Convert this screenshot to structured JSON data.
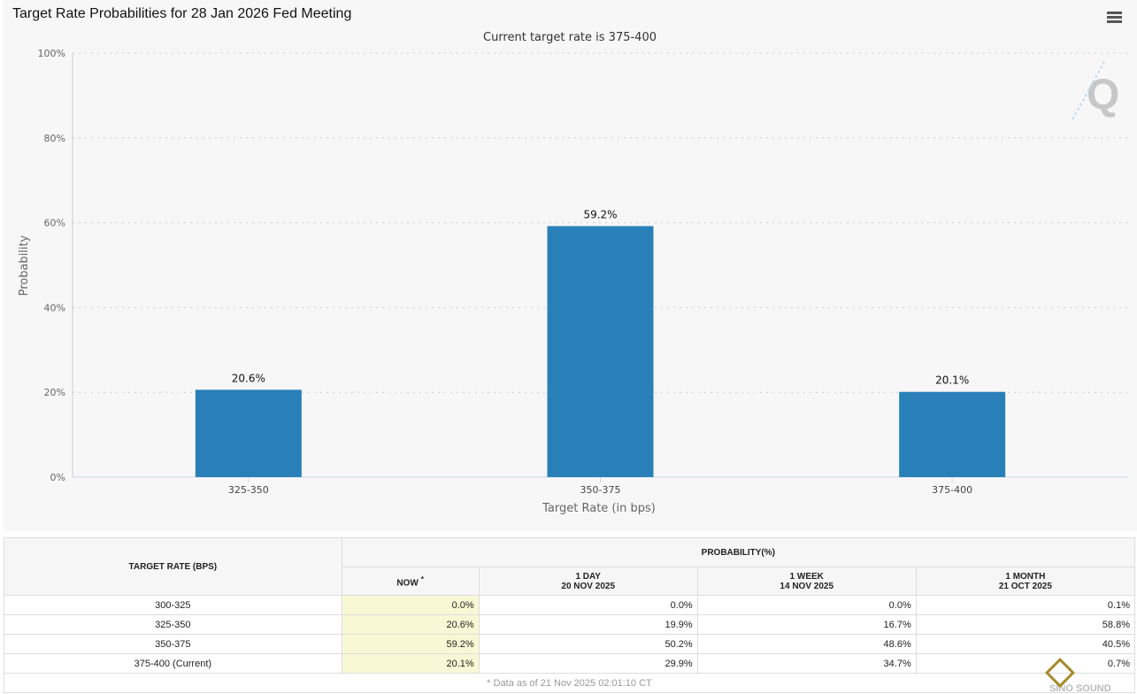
{
  "header": {
    "title": "Target Rate Probabilities for 28 Jan 2026 Fed Meeting",
    "menu_icon": "hamburger-menu-icon"
  },
  "chart_data": {
    "type": "bar",
    "title": "",
    "subtitle": "Current target rate is 375-400",
    "xlabel": "Target Rate (in bps)",
    "ylabel": "Probability",
    "categories": [
      "325-350",
      "350-375",
      "375-400"
    ],
    "values": [
      20.6,
      59.2,
      20.1
    ],
    "data_labels": [
      "20.6%",
      "59.2%",
      "20.1%"
    ],
    "ylim": [
      0,
      100
    ],
    "yticks": [
      "0%",
      "20%",
      "40%",
      "60%",
      "80%",
      "100%"
    ],
    "grid": true,
    "color": "#2980b9"
  },
  "table": {
    "col_header": "TARGET RATE (BPS)",
    "group_header": "PROBABILITY(%)",
    "columns": [
      {
        "l1": "NOW",
        "l2": "*"
      },
      {
        "l1": "1 DAY",
        "l2": "20 NOV 2025"
      },
      {
        "l1": "1 WEEK",
        "l2": "14 NOV 2025"
      },
      {
        "l1": "1 MONTH",
        "l2": "21 OCT 2025"
      }
    ],
    "rows": [
      {
        "rate": "300-325",
        "v": [
          "0.0%",
          "0.0%",
          "0.0%",
          "0.1%"
        ]
      },
      {
        "rate": "325-350",
        "v": [
          "20.6%",
          "19.9%",
          "16.7%",
          "58.8%"
        ]
      },
      {
        "rate": "350-375",
        "v": [
          "59.2%",
          "50.2%",
          "48.6%",
          "40.5%"
        ]
      },
      {
        "rate": "375-400 (Current)",
        "v": [
          "20.1%",
          "29.9%",
          "34.7%",
          "0.7%"
        ]
      }
    ],
    "footnote": "* Data as of 21 Nov 2025 02:01:10 CT"
  },
  "watermark": {
    "logo": "SINO SOUND 漢聲集團"
  }
}
